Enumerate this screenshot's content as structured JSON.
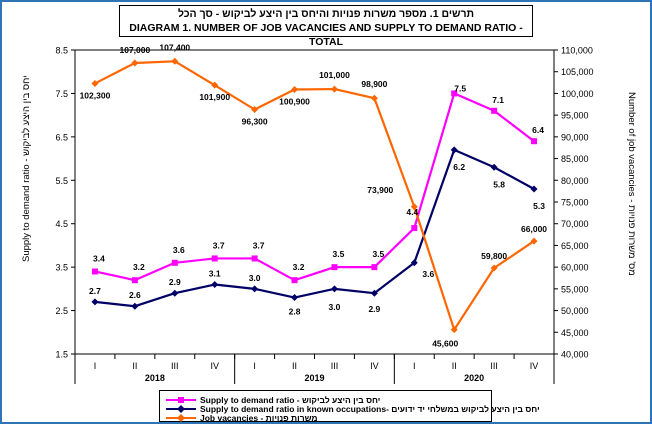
{
  "title": {
    "hebrew": "תרשים 1. מספר משרות פנויות והיחס בין היצע לביקוש - סך הכל",
    "english": "DIAGRAM 1. NUMBER OF JOB VACANCIES AND SUPPLY TO DEMAND RATIO - TOTAL"
  },
  "colors": {
    "ratio": "#ff00ff",
    "known": "#000066",
    "vacancies": "#ff6600",
    "border": "#2e75b6"
  },
  "chart_data": {
    "type": "line",
    "quarters": [
      "I",
      "II",
      "III",
      "IV",
      "I",
      "II",
      "III",
      "IV",
      "I",
      "II",
      "III",
      "IV"
    ],
    "years": [
      "2018",
      "2019",
      "2020"
    ],
    "ylabel_left": "Supply to demand ratio - יחס בין היצע לביקוש",
    "ylabel_right": "Number of job vacancies - מס' משרות פנויות",
    "left_axis": {
      "min": 1.5,
      "max": 8.5,
      "ticks": [
        "1.5",
        "2.5",
        "3.5",
        "4.5",
        "5.5",
        "6.5",
        "7.5",
        "8.5"
      ]
    },
    "right_axis": {
      "min": 40000,
      "max": 110000,
      "ticks": [
        "40,000",
        "45,000",
        "50,000",
        "55,000",
        "60,000",
        "65,000",
        "70,000",
        "75,000",
        "80,000",
        "85,000",
        "90,000",
        "95,000",
        "100,000",
        "105,000",
        "110,000"
      ]
    },
    "series": [
      {
        "key": "ratio",
        "name": "Supply to demand ratio - יחס בין היצע לביקוש",
        "axis": "left",
        "values": [
          3.4,
          3.2,
          3.6,
          3.7,
          3.7,
          3.2,
          3.5,
          3.5,
          4.4,
          7.5,
          7.1,
          6.4
        ],
        "labels": [
          "3.4",
          "3.2",
          "3.6",
          "3.7",
          "3.7",
          "3.2",
          "3.5",
          "3.5",
          "4.4",
          "7.5",
          "7.1",
          "6.4"
        ]
      },
      {
        "key": "known",
        "name": "Supply to demand ratio in known occupations- יחס בין היצע לביקוש במשלחי יד ידועים",
        "axis": "left",
        "values": [
          2.7,
          2.6,
          2.9,
          3.1,
          3.0,
          2.8,
          3.0,
          2.9,
          3.6,
          6.2,
          5.8,
          5.3
        ],
        "labels": [
          "2.7",
          "2.6",
          "2.9",
          "3.1",
          "3.0",
          "2.8",
          "3.0",
          "2.9",
          "3.6",
          "6.2",
          "5.8",
          "5.3"
        ]
      },
      {
        "key": "vacancies",
        "name": "Job vacancies - משרות פנויות",
        "axis": "right",
        "values": [
          102300,
          107000,
          107400,
          101900,
          96300,
          100900,
          101000,
          98900,
          73900,
          45600,
          59800,
          66000
        ],
        "labels": [
          "102,300",
          "107,000",
          "107,400",
          "101,900",
          "96,300",
          "100,900",
          "101,000",
          "98,900",
          "73,900",
          "45,600",
          "59,800",
          "66,000"
        ]
      }
    ],
    "grid": false,
    "legend_position": "bottom"
  }
}
